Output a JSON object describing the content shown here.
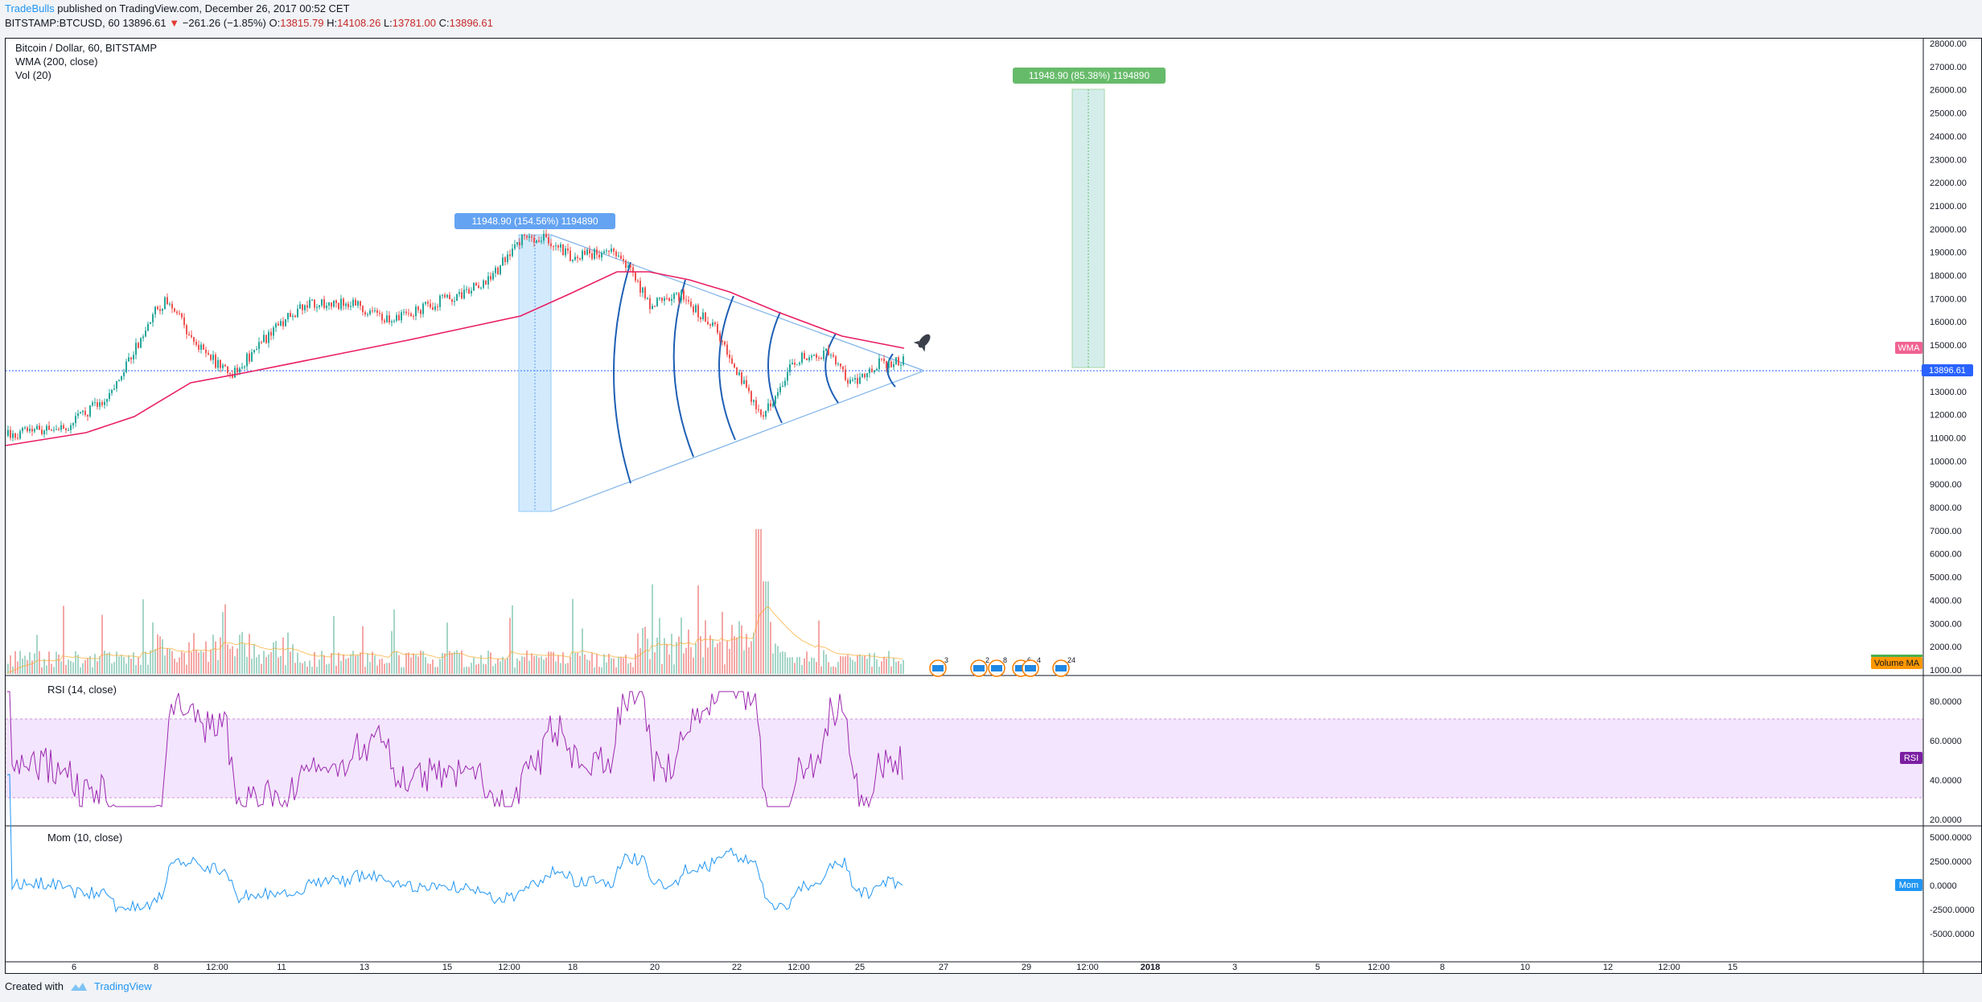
{
  "header": {
    "author": "TradeBulls",
    "published": "published on TradingView.com, December 26, 2017 00:52 CET",
    "symbol": "BITSTAMP:BTCUSD, 60",
    "last": "13896.61",
    "arrow": "▼",
    "change": "−261.26 (−1.85%)",
    "o_label": "O:",
    "o_val": "13815.79",
    "h_label": "H:",
    "h_val": "14108.26",
    "l_label": "L:",
    "l_val": "13781.00",
    "c_label": "C:",
    "c_val": "13896.61"
  },
  "panes": {
    "main": {
      "title": "Bitcoin / Dollar, 60, BITSTAMP",
      "wma": "WMA (200, close)",
      "vol": "Vol (20)"
    },
    "rsi": {
      "title": "RSI (14, close)"
    },
    "mom": {
      "title": "Mom (10, close)"
    }
  },
  "price_axis": [
    "28000.00",
    "27000.00",
    "26000.00",
    "25000.00",
    "24000.00",
    "23000.00",
    "22000.00",
    "21000.00",
    "20000.00",
    "19000.00",
    "18000.00",
    "17000.00",
    "16000.00",
    "15000.00",
    "14000.00",
    "13000.00",
    "12000.00",
    "11000.00",
    "10000.00",
    "9000.00",
    "8000.00",
    "7000.00",
    "6000.00",
    "5000.00",
    "4000.00",
    "3000.00",
    "2000.00",
    "1000.00"
  ],
  "rsi_axis": [
    "80.0000",
    "60.0000",
    "40.0000",
    "20.0000"
  ],
  "mom_axis": [
    "5000.0000",
    "2500.0000",
    "0.0000",
    "-2500.0000",
    "-5000.0000"
  ],
  "time_axis": [
    "6",
    "8",
    "12:00",
    "11",
    "13",
    "15",
    "12:00",
    "18",
    "20",
    "22",
    "12:00",
    "25",
    "27",
    "29",
    "12:00",
    "2018",
    "3",
    "5",
    "12:00",
    "8",
    "10",
    "12",
    "12:00",
    "15"
  ],
  "badges": {
    "last_price": "13896.61",
    "wma": "WMA",
    "volume_ma": "Volume MA",
    "rsi": "RSI",
    "mom": "Mom"
  },
  "measures": {
    "blue": "11948.90 (154.56%) 1194890",
    "green": "11948.90 (85.38%) 1194890"
  },
  "events": [
    "3",
    "2",
    "8",
    "6",
    "4",
    "24"
  ],
  "footer": {
    "created_with": "Created with",
    "tv": "TradingView"
  },
  "chart_data": {
    "type": "candlestick",
    "price_range": [
      1000,
      28000
    ],
    "series": [
      {
        "name": "WMA (200, close)",
        "color": "#e91e63"
      },
      {
        "name": "Vol (20)"
      }
    ],
    "rsi_range": [
      20,
      80
    ],
    "mom_range": [
      -5000,
      5000
    ],
    "colors": {
      "up": "#26a69a",
      "down": "#ef5350",
      "wma": "#e91e63",
      "rsi": "#9c27b0",
      "mom": "#2196f3"
    }
  }
}
